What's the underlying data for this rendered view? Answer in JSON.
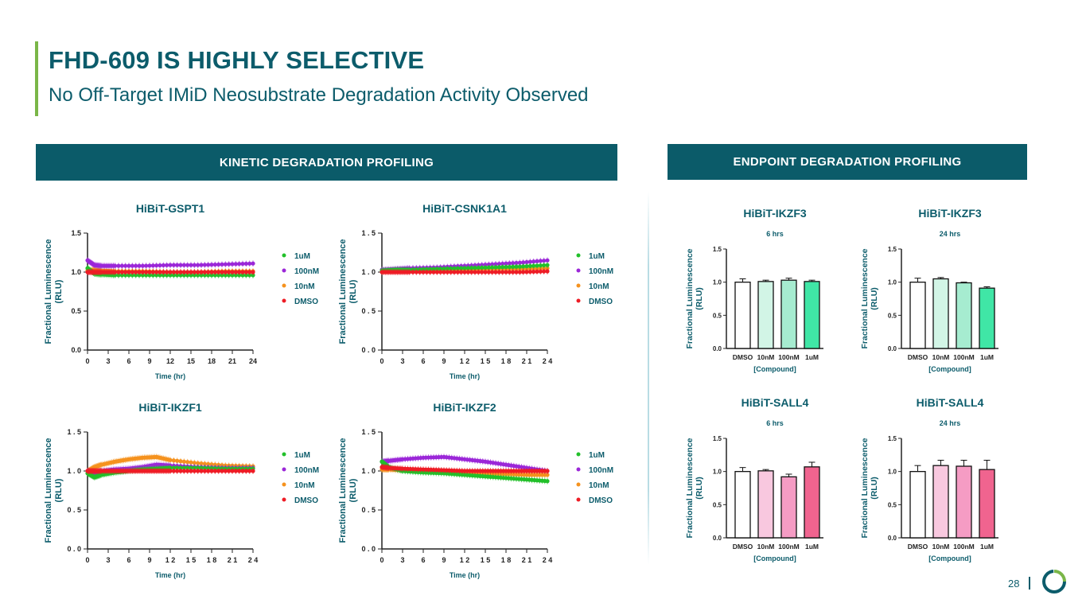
{
  "header": {
    "title": "FHD-609 IS HIGHLY SELECTIVE",
    "subtitle": "No Off-Target IMiD Neosubstrate Degradation Activity Observed"
  },
  "banners": {
    "kinetic": "KINETIC DEGRADATION PROFILING",
    "endpoint": "ENDPOINT DEGRADATION PROFILING"
  },
  "footer": {
    "page_number": "28"
  },
  "colors": {
    "accent": "#7ab648",
    "brand": "#0c5c6b",
    "uM": "#22c02a",
    "100nM": "#9b27d8",
    "10nM": "#f5921e",
    "DMSO": "#ee1c25"
  },
  "chart_data": [
    {
      "type": "line",
      "title": "HiBiT-GSPT1",
      "xlabel": "Time (hr)",
      "ylabel": "Fractional Luminescence (RLU)",
      "xlim": [
        0,
        24
      ],
      "ylim": [
        0,
        1.5
      ],
      "xticks": [
        "0",
        "3",
        "6",
        "9",
        "12",
        "15",
        "18",
        "21",
        "24"
      ],
      "yticks": [
        "0.0",
        "0.5",
        "1.0",
        "1.5"
      ],
      "legend": [
        "1uM",
        "100nM",
        "10nM",
        "DMSO"
      ],
      "series": [
        {
          "name": "1uM",
          "x": [
            0,
            1,
            2,
            4,
            8,
            12,
            16,
            20,
            24
          ],
          "y": [
            1.05,
            0.98,
            0.97,
            0.96,
            0.96,
            0.96,
            0.96,
            0.96,
            0.96
          ]
        },
        {
          "name": "100nM",
          "x": [
            0,
            1,
            2,
            4,
            8,
            12,
            16,
            20,
            24
          ],
          "y": [
            1.15,
            1.09,
            1.08,
            1.08,
            1.08,
            1.09,
            1.09,
            1.1,
            1.11
          ]
        },
        {
          "name": "10nM",
          "x": [
            0,
            1,
            2,
            4,
            8,
            12,
            16,
            20,
            24
          ],
          "y": [
            1.02,
            1.03,
            1.02,
            1.01,
            1.01,
            1.0,
            1.0,
            1.01,
            1.01
          ]
        },
        {
          "name": "DMSO",
          "x": [
            0,
            1,
            2,
            4,
            8,
            12,
            16,
            20,
            24
          ],
          "y": [
            1.0,
            1.0,
            1.0,
            1.0,
            1.0,
            1.0,
            1.0,
            1.0,
            1.0
          ]
        }
      ]
    },
    {
      "type": "line",
      "title": "HiBiT-CSNK1A1",
      "xlabel": "Time (hr)",
      "ylabel": "Fractional Luminescence (RLU)",
      "xlim": [
        0,
        24
      ],
      "ylim": [
        0,
        1.5
      ],
      "xticks": [
        "0",
        "3",
        "6",
        "9",
        "1 2",
        "1 5",
        "1 8",
        "2 1",
        "2 4"
      ],
      "yticks": [
        "0 . 0",
        "0 . 5",
        "1 . 0",
        "1 . 5"
      ],
      "legend": [
        "1uM",
        "100nM",
        "10nM",
        "DMSO"
      ],
      "series": [
        {
          "name": "1uM",
          "x": [
            0,
            2,
            4,
            8,
            12,
            16,
            20,
            24
          ],
          "y": [
            1.02,
            1.03,
            1.03,
            1.04,
            1.05,
            1.06,
            1.07,
            1.09
          ]
        },
        {
          "name": "100nM",
          "x": [
            0,
            2,
            4,
            8,
            12,
            16,
            20,
            24
          ],
          "y": [
            1.03,
            1.04,
            1.05,
            1.06,
            1.08,
            1.1,
            1.12,
            1.15
          ]
        },
        {
          "name": "10nM",
          "x": [
            0,
            2,
            4,
            8,
            12,
            16,
            20,
            24
          ],
          "y": [
            1.01,
            1.02,
            1.02,
            1.03,
            1.03,
            1.04,
            1.04,
            1.05
          ]
        },
        {
          "name": "DMSO",
          "x": [
            0,
            2,
            4,
            8,
            12,
            16,
            20,
            24
          ],
          "y": [
            1.0,
            1.0,
            1.0,
            1.0,
            1.0,
            1.0,
            1.0,
            1.01
          ]
        }
      ]
    },
    {
      "type": "line",
      "title": "HiBiT-IKZF1",
      "xlabel": "Time (hr)",
      "ylabel": "Fractional Luminescence (RLU)",
      "xlim": [
        0,
        24
      ],
      "ylim": [
        0,
        1.5
      ],
      "xticks": [
        "0",
        "3",
        "6",
        "9",
        "1 2",
        "1 5",
        "1 8",
        "2 1",
        "2 4"
      ],
      "yticks": [
        "0 . 0",
        "0 . 5",
        "1 . 0",
        "1 . 5"
      ],
      "legend": [
        "1uM",
        "100nM",
        "10nM",
        "DMSO"
      ],
      "series": [
        {
          "name": "1uM",
          "x": [
            0,
            1,
            2,
            4,
            6,
            8,
            10,
            12,
            16,
            20,
            24
          ],
          "y": [
            0.97,
            0.92,
            0.95,
            0.98,
            1.0,
            1.02,
            1.03,
            1.04,
            1.04,
            1.03,
            1.03
          ]
        },
        {
          "name": "100nM",
          "x": [
            0,
            1,
            2,
            4,
            6,
            8,
            10,
            12,
            16,
            20,
            24
          ],
          "y": [
            1.0,
            0.97,
            1.0,
            1.02,
            1.03,
            1.05,
            1.08,
            1.07,
            1.05,
            1.04,
            1.04
          ]
        },
        {
          "name": "10nM",
          "x": [
            0,
            1,
            2,
            4,
            6,
            8,
            10,
            12,
            16,
            20,
            24
          ],
          "y": [
            1.0,
            1.05,
            1.08,
            1.12,
            1.15,
            1.17,
            1.18,
            1.14,
            1.1,
            1.07,
            1.06
          ]
        },
        {
          "name": "DMSO",
          "x": [
            0,
            1,
            2,
            4,
            6,
            8,
            10,
            12,
            16,
            20,
            24
          ],
          "y": [
            1.0,
            1.0,
            1.0,
            1.0,
            1.0,
            1.0,
            1.0,
            1.0,
            1.0,
            1.0,
            1.0
          ]
        }
      ]
    },
    {
      "type": "line",
      "title": "HiBiT-IKZF2",
      "xlabel": "Time (hr)",
      "ylabel": "Fractional Luminescence (RLU)",
      "xlim": [
        0,
        24
      ],
      "ylim": [
        0,
        1.5
      ],
      "xticks": [
        "0",
        "3",
        "6",
        "9",
        "1 2",
        "1 5",
        "1 8",
        "2 1",
        "2 4"
      ],
      "yticks": [
        "0 . 0",
        "0 . 5",
        "1 . 0",
        "1 . 5"
      ],
      "legend": [
        "1uM",
        "100nM",
        "10nM",
        "DMSO"
      ],
      "series": [
        {
          "name": "1uM",
          "x": [
            0,
            1,
            3,
            6,
            9,
            12,
            15,
            18,
            21,
            24
          ],
          "y": [
            1.12,
            1.05,
            1.0,
            0.98,
            0.97,
            0.95,
            0.93,
            0.91,
            0.89,
            0.87
          ]
        },
        {
          "name": "100nM",
          "x": [
            0,
            1,
            3,
            6,
            9,
            12,
            15,
            18,
            21,
            24
          ],
          "y": [
            1.12,
            1.13,
            1.15,
            1.17,
            1.18,
            1.15,
            1.12,
            1.08,
            1.04,
            1.0
          ]
        },
        {
          "name": "10nM",
          "x": [
            0,
            1,
            3,
            6,
            9,
            12,
            15,
            18,
            21,
            24
          ],
          "y": [
            1.02,
            1.02,
            1.01,
            1.0,
            0.99,
            0.98,
            0.97,
            0.96,
            0.95,
            0.95
          ]
        },
        {
          "name": "DMSO",
          "x": [
            0,
            1,
            3,
            6,
            9,
            12,
            15,
            18,
            21,
            24
          ],
          "y": [
            1.05,
            1.04,
            1.03,
            1.02,
            1.01,
            1.0,
            1.0,
            1.0,
            1.0,
            1.0
          ]
        }
      ]
    },
    {
      "type": "bar",
      "title": "HiBiT-IKZF3",
      "subtitle": "6 hrs",
      "xlabel": "[Compound]",
      "ylabel": "Fractional Luminescence (RLU)",
      "ylim": [
        0,
        1.5
      ],
      "yticks": [
        "0.0",
        "0.5",
        "1.0",
        "1.5"
      ],
      "categories": [
        "DMSO",
        "10nM",
        "100nM",
        "1uM"
      ],
      "values": [
        1.0,
        1.01,
        1.03,
        1.01
      ],
      "errors": [
        0.05,
        0.02,
        0.03,
        0.02
      ]
    },
    {
      "type": "bar",
      "title": "HiBiT-IKZF3",
      "subtitle": "24 hrs",
      "xlabel": "[Compound]",
      "ylabel": "Fractional Luminescence (RLU)",
      "ylim": [
        0,
        1.5
      ],
      "yticks": [
        "0.0",
        "0.5",
        "1.0",
        "1.5"
      ],
      "categories": [
        "DMSO",
        "10nM",
        "100nM",
        "1uM"
      ],
      "values": [
        1.0,
        1.05,
        0.99,
        0.91
      ],
      "errors": [
        0.06,
        0.02,
        0.01,
        0.02
      ]
    },
    {
      "type": "bar",
      "title": "HiBiT-SALL4",
      "subtitle": "6 hrs",
      "xlabel": "[Compound]",
      "ylabel": "Fractional Luminescence (RLU)",
      "ylim": [
        0,
        1.5
      ],
      "yticks": [
        "0.0",
        "0.5",
        "1.0",
        "1.5"
      ],
      "categories": [
        "DMSO",
        "10nM",
        "100nM",
        "1uM"
      ],
      "values": [
        1.0,
        1.01,
        0.92,
        1.07
      ],
      "errors": [
        0.06,
        0.02,
        0.04,
        0.07
      ]
    },
    {
      "type": "bar",
      "title": "HiBiT-SALL4",
      "subtitle": "24 hrs",
      "xlabel": "[Compound]",
      "ylabel": "Fractional Luminescence (RLU)",
      "ylim": [
        0,
        1.5
      ],
      "yticks": [
        "0.0",
        "0.5",
        "1.0",
        "1.5"
      ],
      "categories": [
        "DMSO",
        "10nM",
        "100nM",
        "1uM"
      ],
      "values": [
        1.0,
        1.09,
        1.08,
        1.03
      ],
      "errors": [
        0.09,
        0.08,
        0.09,
        0.14
      ]
    }
  ]
}
